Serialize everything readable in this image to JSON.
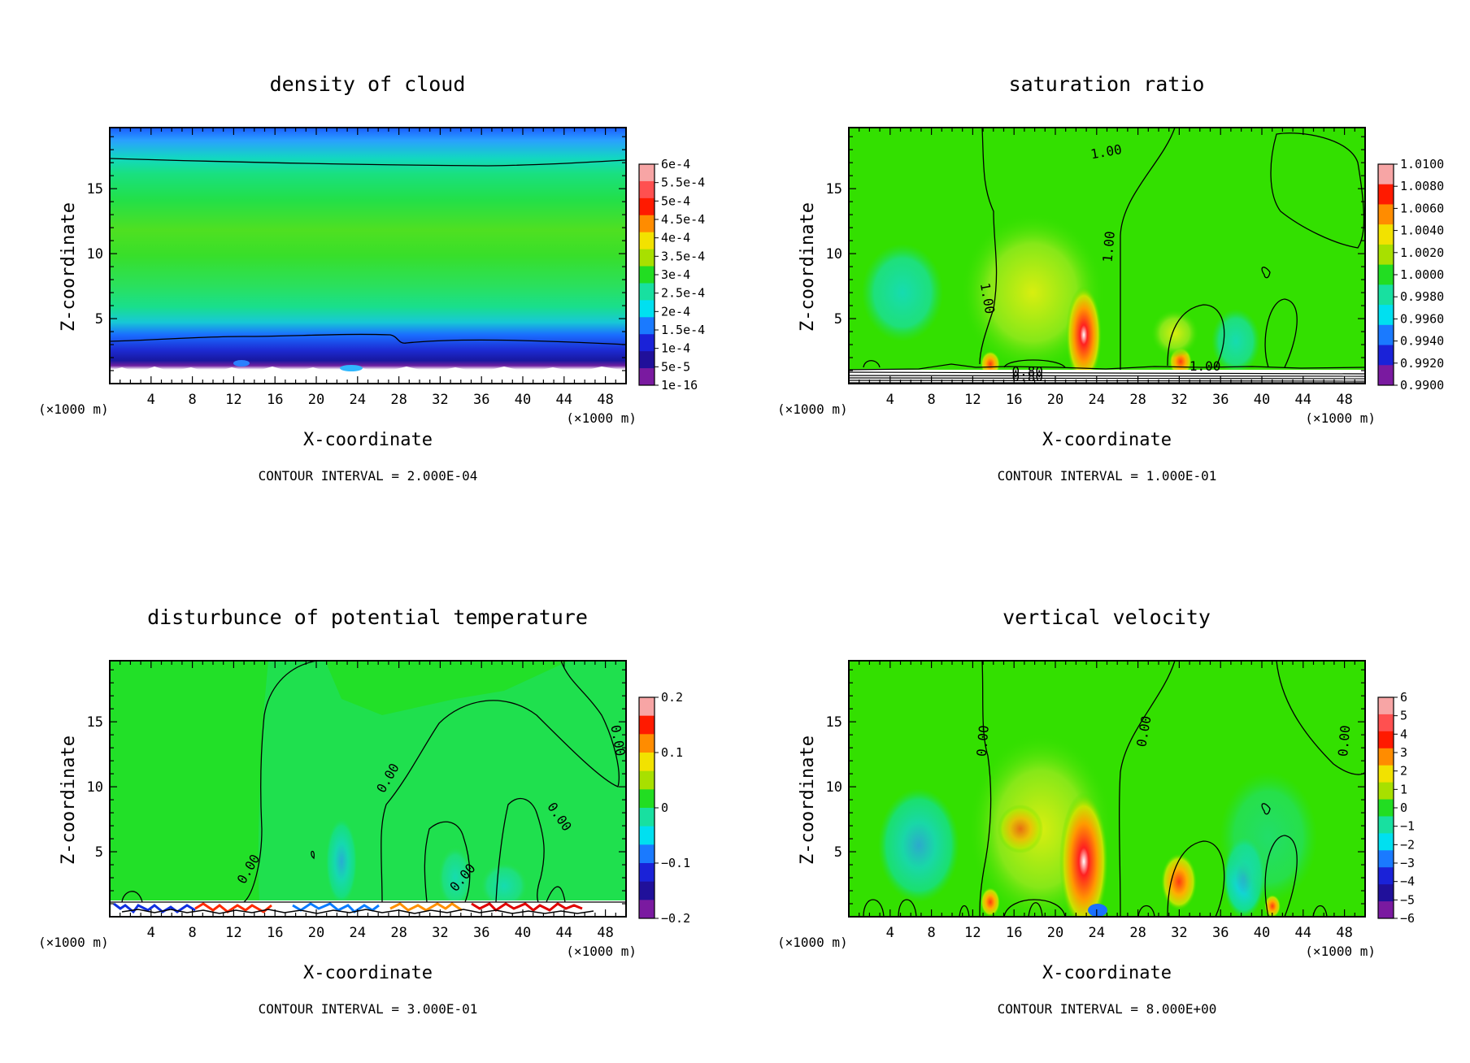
{
  "figure": {
    "panels": [
      {
        "title": "density of cloud",
        "xlabel": "X-coordinate",
        "ylabel": "Z-coordinate",
        "x_unit": "(×1000 m)",
        "y_unit": "(×1000 m)",
        "footer": "CONTOUR INTERVAL = 2.000E-04",
        "colorbar_labels": [
          "6e-4",
          "5.5e-4",
          "5e-4",
          "4.5e-4",
          "4e-4",
          "3.5e-4",
          "3e-4",
          "2.5e-4",
          "2e-4",
          "1.5e-4",
          "1e-4",
          "5e-5",
          "1e-16"
        ],
        "contour_labels": []
      },
      {
        "title": "saturation ratio",
        "xlabel": "X-coordinate",
        "ylabel": "Z-coordinate",
        "x_unit": "(×1000 m)",
        "y_unit": "(×1000 m)",
        "footer": "CONTOUR INTERVAL = 1.000E-01",
        "colorbar_labels": [
          "1.0100",
          "1.0080",
          "1.0060",
          "1.0040",
          "1.0020",
          "1.0000",
          "0.9980",
          "0.9960",
          "0.9940",
          "0.9920",
          "0.9900"
        ],
        "contour_labels": [
          {
            "text": "1.00",
            "x": 25,
            "z": 17.5,
            "rot": -10
          },
          {
            "text": "1.00",
            "x": 13.0,
            "z": 6.5,
            "rot": 80
          },
          {
            "text": "1.00",
            "x": 25.6,
            "z": 10.5,
            "rot": -85
          },
          {
            "text": "1.00",
            "x": 34.5,
            "z": 1.0,
            "rot": 0
          },
          {
            "text": "0.80",
            "x": 17.3,
            "z": 0.6,
            "rot": 0
          },
          {
            "text": "0.80",
            "x": 17.3,
            "z": 0.2,
            "rot": 0
          }
        ]
      },
      {
        "title": "disturbunce of potential temperature",
        "xlabel": "X-coordinate",
        "ylabel": "Z-coordinate",
        "x_unit": "(×1000 m)",
        "y_unit": "(×1000 m)",
        "footer": "CONTOUR INTERVAL = 3.000E-01",
        "colorbar_labels": [
          "0.2",
          "",
          "0.1",
          "",
          "0",
          "",
          "−0.1",
          "",
          "−0.2"
        ],
        "contour_labels": [
          {
            "text": "0.00",
            "x": 13.8,
            "z": 3.5,
            "rot": -60
          },
          {
            "text": "0.00",
            "x": 27.3,
            "z": 10.5,
            "rot": -60
          },
          {
            "text": "0.00",
            "x": 34.5,
            "z": 2.8,
            "rot": -50
          },
          {
            "text": "0.00",
            "x": 43.2,
            "z": 7.5,
            "rot": 55
          },
          {
            "text": "0.00",
            "x": 48.8,
            "z": 13.5,
            "rot": 80
          }
        ]
      },
      {
        "title": "vertical velocity",
        "xlabel": "X-coordinate",
        "ylabel": "Z-coordinate",
        "x_unit": "(×1000 m)",
        "y_unit": "(×1000 m)",
        "footer": "CONTOUR INTERVAL = 8.000E+00",
        "colorbar_labels": [
          "6",
          "5",
          "4",
          "3",
          "2",
          "1",
          "0",
          "−1",
          "−2",
          "−3",
          "−4",
          "−5",
          "−6"
        ],
        "contour_labels": [
          {
            "text": "0.00",
            "x": 13.4,
            "z": 13.5,
            "rot": -85
          },
          {
            "text": "0.00",
            "x": 29.0,
            "z": 14.2,
            "rot": -80
          },
          {
            "text": "0.00",
            "x": 48.4,
            "z": 13.5,
            "rot": -85
          }
        ]
      }
    ]
  },
  "chart_data": [
    {
      "type": "heatmap",
      "title": "density of cloud",
      "xlabel": "X-coordinate (×1000 m)",
      "ylabel": "Z-coordinate (×1000 m)",
      "x_ticks": [
        4,
        8,
        12,
        16,
        20,
        24,
        28,
        32,
        36,
        40,
        44,
        48
      ],
      "y_ticks": [
        5,
        10,
        15
      ],
      "xlim": [
        0,
        50
      ],
      "ylim": [
        0,
        19.7
      ],
      "colorbar": [
        "6e-4",
        "5.5e-4",
        "5e-4",
        "4.5e-4",
        "4e-4",
        "3.5e-4",
        "3e-4",
        "2.5e-4",
        "2e-4",
        "1.5e-4",
        "1e-4",
        "5e-5",
        "1e-16"
      ],
      "contour_interval": "2.000E-04"
    },
    {
      "type": "heatmap",
      "title": "saturation ratio",
      "xlabel": "X-coordinate (×1000 m)",
      "ylabel": "Z-coordinate (×1000 m)",
      "x_ticks": [
        4,
        8,
        12,
        16,
        20,
        24,
        28,
        32,
        36,
        40,
        44,
        48
      ],
      "y_ticks": [
        5,
        10,
        15
      ],
      "xlim": [
        0,
        50
      ],
      "ylim": [
        0,
        19.7
      ],
      "colorbar": [
        "1.0100",
        "1.0080",
        "1.0060",
        "1.0040",
        "1.0020",
        "1.0000",
        "0.9980",
        "0.9960",
        "0.9940",
        "0.9920",
        "0.9900"
      ],
      "contour_interval": "1.000E-01"
    },
    {
      "type": "heatmap",
      "title": "disturbunce of potential temperature",
      "xlabel": "X-coordinate (×1000 m)",
      "ylabel": "Z-coordinate (×1000 m)",
      "x_ticks": [
        4,
        8,
        12,
        16,
        20,
        24,
        28,
        32,
        36,
        40,
        44,
        48
      ],
      "y_ticks": [
        5,
        10,
        15
      ],
      "xlim": [
        0,
        50
      ],
      "ylim": [
        0,
        19.7
      ],
      "colorbar": [
        "0.2",
        "0.1",
        "0",
        "-0.1",
        "-0.2"
      ],
      "contour_interval": "3.000E-01"
    },
    {
      "type": "heatmap",
      "title": "vertical velocity",
      "xlabel": "X-coordinate (×1000 m)",
      "ylabel": "Z-coordinate (×1000 m)",
      "x_ticks": [
        4,
        8,
        12,
        16,
        20,
        24,
        28,
        32,
        36,
        40,
        44,
        48
      ],
      "y_ticks": [
        5,
        10,
        15
      ],
      "xlim": [
        0,
        50
      ],
      "ylim": [
        0,
        19.7
      ],
      "colorbar": [
        "6",
        "5",
        "4",
        "3",
        "2",
        "1",
        "0",
        "-1",
        "-2",
        "-3",
        "-4",
        "-5",
        "-6"
      ],
      "contour_interval": "8.000E+00"
    }
  ]
}
